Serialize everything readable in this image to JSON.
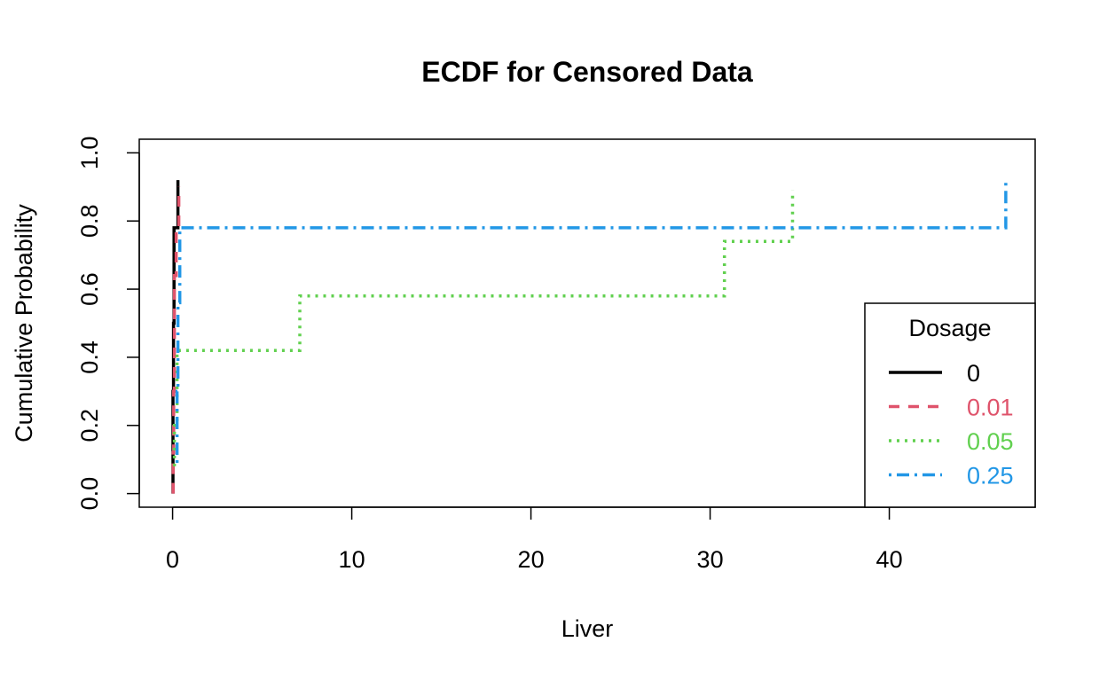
{
  "chart_data": {
    "type": "line",
    "title": "ECDF for Censored Data",
    "xlabel": "Liver",
    "ylabel": "Cumulative Probability",
    "xlim": [
      -1.86,
      48.14
    ],
    "ylim": [
      -0.04,
      1.04
    ],
    "xticks": [
      0,
      10,
      20,
      30,
      40
    ],
    "xtick_labels": [
      "0",
      "10",
      "20",
      "30",
      "40"
    ],
    "yticks": [
      0,
      0.2,
      0.4,
      0.6,
      0.8,
      1
    ],
    "ytick_labels": [
      "0.0",
      "0.2",
      "0.4",
      "0.6",
      "0.8",
      "1.0"
    ],
    "grid": false,
    "legend": {
      "title": "Dosage",
      "placement": "bottom-right",
      "entries": [
        "0",
        "0.01",
        "0.05",
        "0.25"
      ]
    },
    "series": [
      {
        "name": "0",
        "color": "#000000",
        "dash": "solid",
        "points": [
          [
            0.02,
            0.0
          ],
          [
            0.02,
            0.3
          ],
          [
            0.05,
            0.3
          ],
          [
            0.05,
            0.5
          ],
          [
            0.08,
            0.5
          ],
          [
            0.08,
            0.78
          ],
          [
            0.3,
            0.78
          ],
          [
            0.3,
            0.92
          ]
        ]
      },
      {
        "name": "0.01",
        "color": "#DF536B",
        "dash": "dashed",
        "points": [
          [
            0.03,
            0.0
          ],
          [
            0.03,
            0.12
          ],
          [
            0.06,
            0.12
          ],
          [
            0.06,
            0.3
          ],
          [
            0.1,
            0.3
          ],
          [
            0.1,
            0.64
          ],
          [
            0.2,
            0.64
          ],
          [
            0.2,
            0.78
          ],
          [
            0.35,
            0.78
          ],
          [
            0.35,
            0.9
          ]
        ]
      },
      {
        "name": "0.05",
        "color": "#61D04F",
        "dash": "dotted",
        "points": [
          [
            0.1,
            0.08
          ],
          [
            0.1,
            0.2
          ],
          [
            0.25,
            0.2
          ],
          [
            0.25,
            0.42
          ],
          [
            7.1,
            0.42
          ],
          [
            7.1,
            0.58
          ],
          [
            30.8,
            0.58
          ],
          [
            30.8,
            0.74
          ],
          [
            34.6,
            0.74
          ],
          [
            34.6,
            0.89
          ]
        ]
      },
      {
        "name": "0.25",
        "color": "#2297E6",
        "dash": "dotdash",
        "points": [
          [
            0.25,
            0.09
          ],
          [
            0.25,
            0.3
          ],
          [
            0.3,
            0.3
          ],
          [
            0.3,
            0.56
          ],
          [
            0.4,
            0.56
          ],
          [
            0.4,
            0.78
          ],
          [
            46.5,
            0.78
          ],
          [
            46.5,
            0.92
          ]
        ]
      }
    ]
  }
}
